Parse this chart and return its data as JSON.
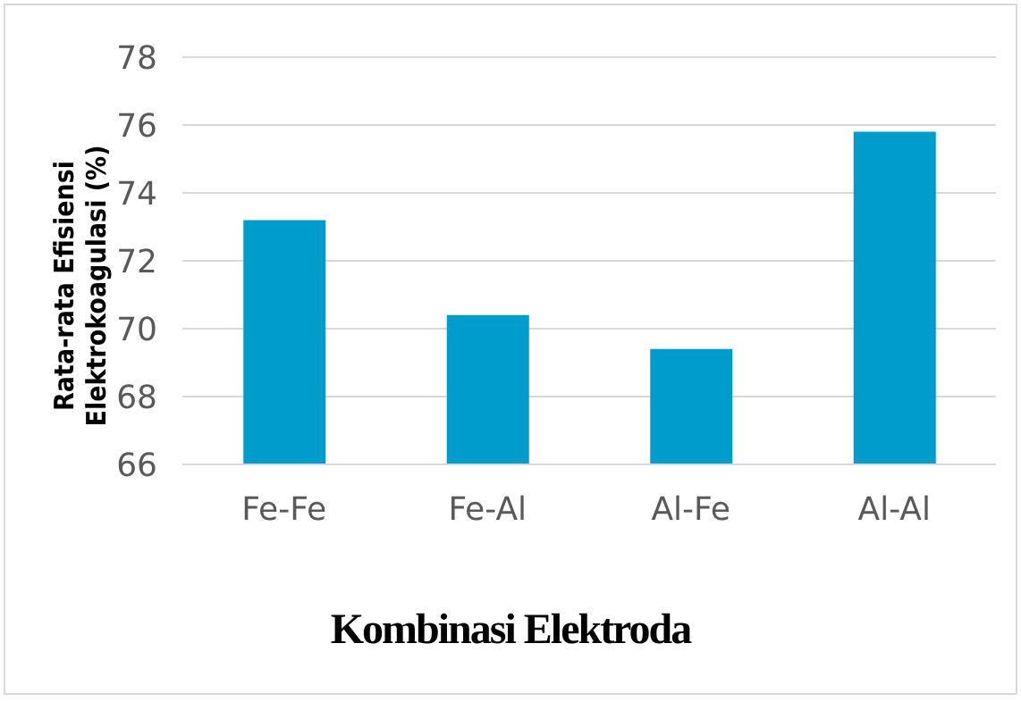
{
  "chart_data": {
    "type": "bar",
    "xlabel": "Kombinasi Elektroda",
    "ylabel": "Rata-rata Efisiensi\nElektrokoagulasi (%)",
    "categories": [
      "Fe-Fe",
      "Fe-Al",
      "Al-Fe",
      "Al-Al"
    ],
    "values": [
      73.2,
      70.4,
      69.4,
      75.8
    ],
    "color": "#009ccc",
    "ylim": [
      66,
      78
    ],
    "yticks": [
      66,
      68,
      70,
      72,
      74,
      76,
      78
    ],
    "grid": "y",
    "legend": false
  }
}
